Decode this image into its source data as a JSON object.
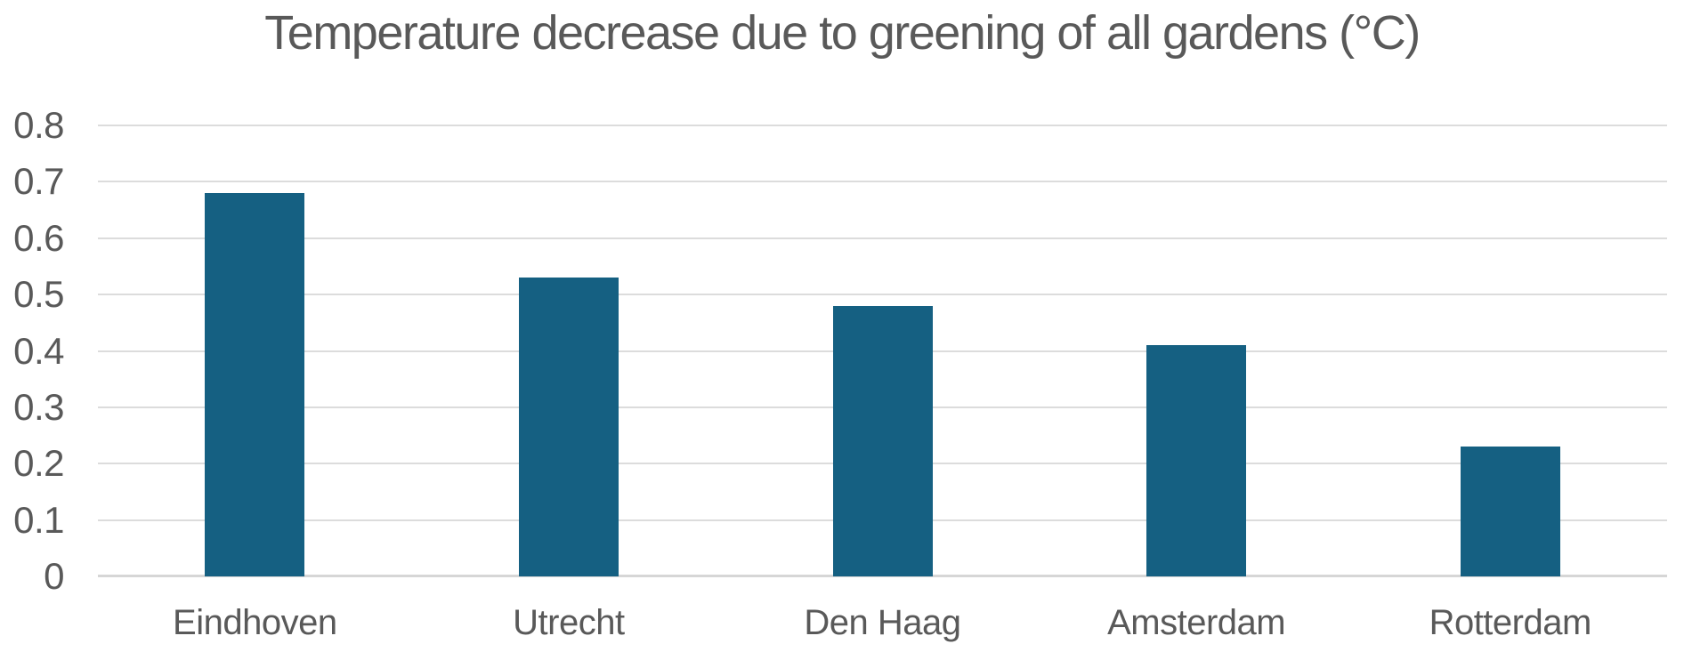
{
  "chart_data": {
    "type": "bar",
    "title": "Temperature decrease due to greening of all gardens (°C)",
    "categories": [
      "Eindhoven",
      "Utrecht",
      "Den Haag",
      "Amsterdam",
      "Rotterdam"
    ],
    "values": [
      0.68,
      0.53,
      0.48,
      0.41,
      0.23
    ],
    "xlabel": "",
    "ylabel": "",
    "ylim": [
      0,
      0.8
    ],
    "ytick_step": 0.1,
    "ytick_labels": [
      "0",
      "0.1",
      "0.2",
      "0.3",
      "0.4",
      "0.5",
      "0.6",
      "0.7",
      "0.8"
    ],
    "grid": true,
    "legend": false,
    "colors": {
      "bar": "#156082",
      "gridline": "#dcdcdc",
      "axis_line": "#d6d6d6",
      "text": "#595959",
      "background": "#ffffff"
    }
  }
}
